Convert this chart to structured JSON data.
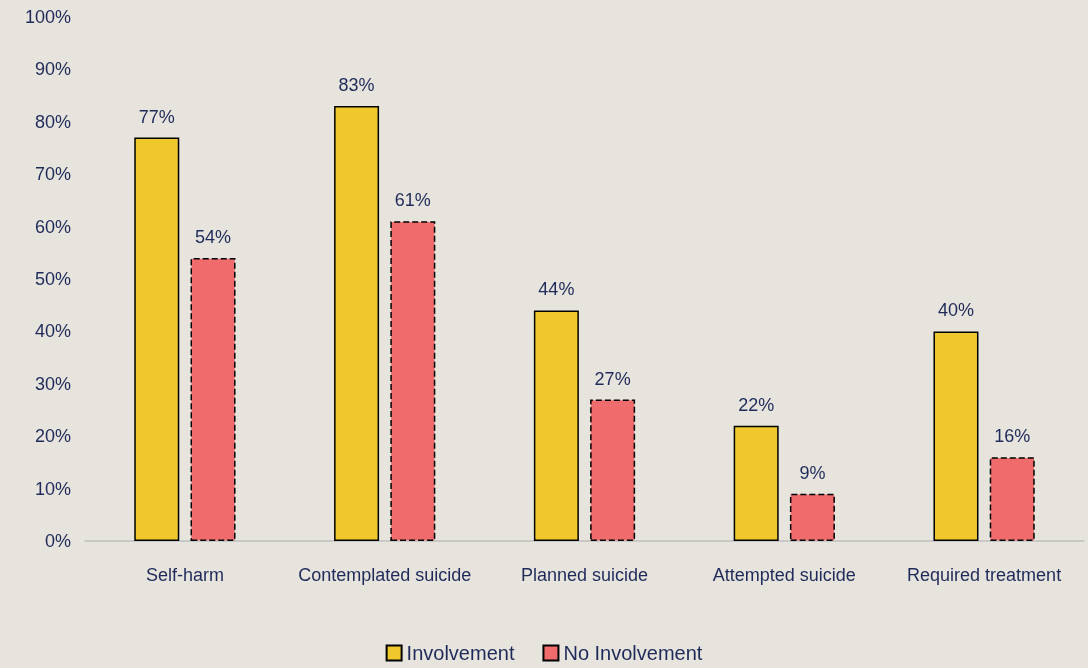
{
  "chart_data": {
    "type": "bar",
    "categories": [
      "Self-harm",
      "Contemplated suicide",
      "Planned suicide",
      "Attempted suicide",
      "Required treatment"
    ],
    "series": [
      {
        "name": "Involvement",
        "color": "#eec82c",
        "line_style": "solid",
        "values": [
          77,
          83,
          44,
          22,
          40
        ],
        "value_labels": [
          "77%",
          "83%",
          "44%",
          "22%",
          "40%"
        ]
      },
      {
        "name": "No Involvement",
        "color": "#f06b6b",
        "line_style": "dashed",
        "values": [
          54,
          61,
          27,
          9,
          16
        ],
        "value_labels": [
          "54%",
          "61%",
          "27%",
          "9%",
          "16%"
        ]
      }
    ],
    "ylim": [
      0,
      100
    ],
    "yticks": [
      {
        "value": 0,
        "label": "0%"
      },
      {
        "value": 10,
        "label": "10%"
      },
      {
        "value": 20,
        "label": "20%"
      },
      {
        "value": 30,
        "label": "30%"
      },
      {
        "value": 40,
        "label": "40%"
      },
      {
        "value": 50,
        "label": "50%"
      },
      {
        "value": 60,
        "label": "60%"
      },
      {
        "value": 70,
        "label": "70%"
      },
      {
        "value": 80,
        "label": "80%"
      },
      {
        "value": 90,
        "label": "90%"
      },
      {
        "value": 100,
        "label": "100%"
      }
    ],
    "grid": false,
    "legend": "bottom"
  }
}
